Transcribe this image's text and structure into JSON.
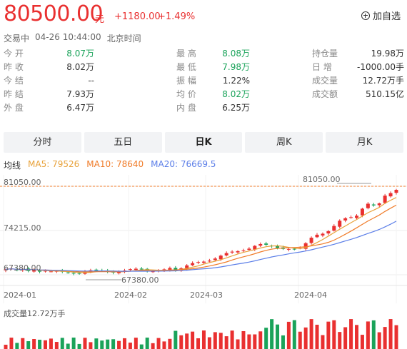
{
  "quote": {
    "price": "80500.00",
    "unit": "元",
    "change": "+1180.00",
    "change_pct": "+1.49%",
    "watch_label": "加自选"
  },
  "status": {
    "state": "交易中",
    "time": "04-26 10:44:00",
    "zone": "北京时间"
  },
  "stats": {
    "col1": [
      {
        "label": "今 开",
        "value": "8.07万",
        "color": "#1aa35a"
      },
      {
        "label": "昨 收",
        "value": "8.02万",
        "color": "#333333"
      },
      {
        "label": "今 结",
        "value": "--",
        "color": "#333333"
      },
      {
        "label": "昨 结",
        "value": "7.93万",
        "color": "#333333"
      },
      {
        "label": "外 盘",
        "value": "6.47万",
        "color": "#333333"
      }
    ],
    "col2": [
      {
        "label": "最 高",
        "value": "8.08万",
        "color": "#1aa35a"
      },
      {
        "label": "最 低",
        "value": "7.98万",
        "color": "#1aa35a"
      },
      {
        "label": "振 幅",
        "value": "1.22%",
        "color": "#333333"
      },
      {
        "label": "均 价",
        "value": "8.02万",
        "color": "#1aa35a"
      },
      {
        "label": "内 盘",
        "value": "6.25万",
        "color": "#333333"
      }
    ],
    "col3": [
      {
        "label": "持仓量",
        "value": "19.98万",
        "color": "#333333"
      },
      {
        "label": "日 增",
        "value": "-1000.00手",
        "color": "#333333"
      },
      {
        "label": "成交量",
        "value": "12.72万手",
        "color": "#333333"
      },
      {
        "label": "成交额",
        "value": "510.15亿",
        "color": "#333333"
      }
    ]
  },
  "tabs": [
    {
      "label": "分时",
      "active": false
    },
    {
      "label": "五日",
      "active": false
    },
    {
      "label": "日K",
      "active": true
    },
    {
      "label": "周K",
      "active": false
    },
    {
      "label": "月K",
      "active": false
    }
  ],
  "ma": {
    "kind": "均线",
    "ma5": "MA5: 79526",
    "ma10": "MA10: 78640",
    "ma20": "MA20: 76669.5",
    "ma5_color": "#e8a23a",
    "ma10_color": "#f07b28",
    "ma20_color": "#5b7ee8"
  },
  "chart_data": {
    "type": "candlestick",
    "y_ticks": [
      "81050.00",
      "74215.00",
      "67380.00"
    ],
    "ylim": [
      67380,
      81050
    ],
    "x_ticks": [
      "2024-01",
      "2024-02",
      "2024-03",
      "2024-04"
    ],
    "max_annotation": "81050.00",
    "min_annotation": "67380.00",
    "colors": {
      "up": "#e93030",
      "down": "#1aa35a",
      "ma5": "#e8a23a",
      "ma10": "#f07b28",
      "ma20": "#5b7ee8",
      "ref_line": "#f07b28"
    },
    "volume_label": "成交量12.72万手"
  }
}
